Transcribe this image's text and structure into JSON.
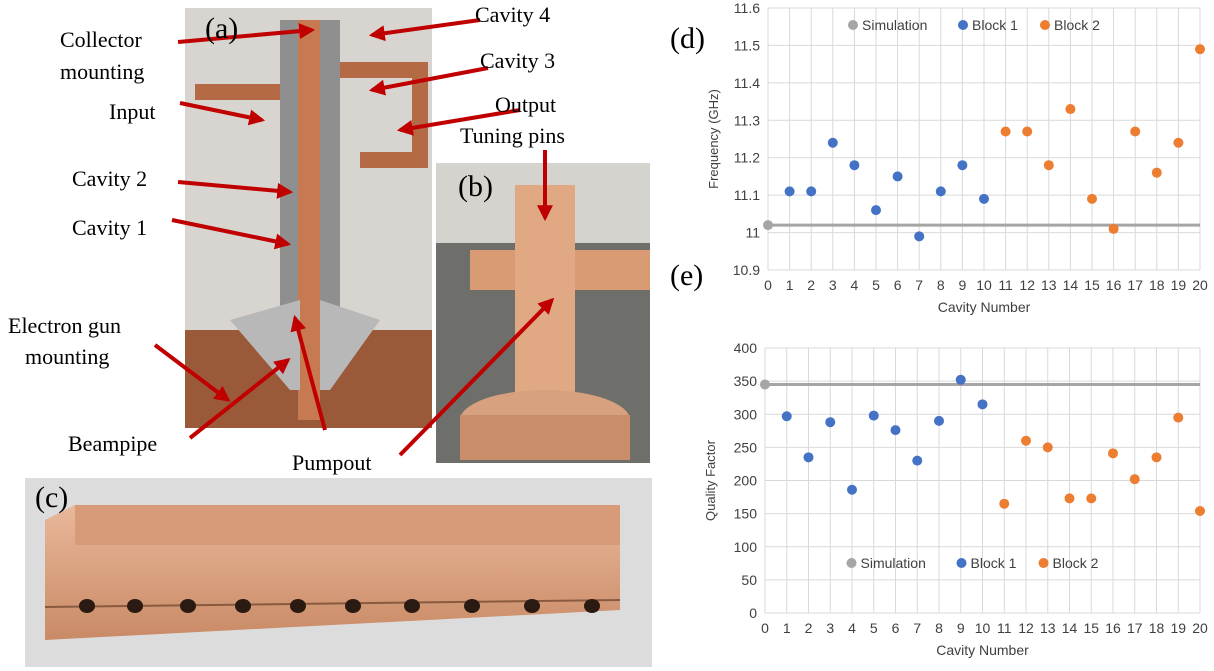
{
  "panels": {
    "a": "(a)",
    "b": "(b)",
    "c": "(c)",
    "d": "(d)",
    "e": "(e)"
  },
  "labels": {
    "collector": [
      "Collector",
      "mounting"
    ],
    "cavity4": "Cavity 4",
    "cavity3": "Cavity 3",
    "input": "Input",
    "output": "Output",
    "tuning": "Tuning pins",
    "cavity2": "Cavity 2",
    "cavity1": "Cavity 1",
    "gun": [
      "Electron gun",
      "mounting"
    ],
    "beampipe": "Beampipe",
    "pumpout": "Pumpout"
  },
  "chart_data": [
    {
      "type": "scatter",
      "xlabel": "Cavity Number",
      "ylabel": "Frequency (GHz)",
      "xlim": [
        0,
        20
      ],
      "xticks": [
        0,
        1,
        2,
        3,
        4,
        5,
        6,
        7,
        8,
        9,
        10,
        11,
        12,
        13,
        14,
        15,
        16,
        17,
        18,
        19,
        20
      ],
      "ylim": [
        10.9,
        11.6
      ],
      "yticks": [
        10.9,
        11,
        11.1,
        11.2,
        11.3,
        11.4,
        11.5,
        11.6
      ],
      "grid": true,
      "legend": "top",
      "series": [
        {
          "name": "Simulation",
          "color": "#a5a5a5",
          "line": true,
          "x": [
            0,
            20
          ],
          "values": [
            11.02,
            11.02
          ]
        },
        {
          "name": "Block 1",
          "color": "#4472c4",
          "x": [
            1,
            2,
            3,
            4,
            5,
            6,
            7,
            8,
            9,
            10
          ],
          "values": [
            11.11,
            11.11,
            11.24,
            11.18,
            11.06,
            11.15,
            10.99,
            11.11,
            11.18,
            11.09
          ]
        },
        {
          "name": "Block 2",
          "color": "#ed7d31",
          "x": [
            11,
            12,
            13,
            14,
            15,
            16,
            17,
            18,
            19,
            20
          ],
          "values": [
            11.27,
            11.27,
            11.18,
            11.33,
            11.09,
            11.01,
            11.27,
            11.16,
            11.24,
            11.49
          ]
        }
      ]
    },
    {
      "type": "scatter",
      "xlabel": "Cavity Number",
      "ylabel": "Quality Factor",
      "xlim": [
        0,
        20
      ],
      "xticks": [
        0,
        1,
        2,
        3,
        4,
        5,
        6,
        7,
        8,
        9,
        10,
        11,
        12,
        13,
        14,
        15,
        16,
        17,
        18,
        19,
        20
      ],
      "ylim": [
        0,
        400
      ],
      "yticks": [
        0,
        50,
        100,
        150,
        200,
        250,
        300,
        350,
        400
      ],
      "grid": true,
      "legend": "bottom",
      "series": [
        {
          "name": "Simulation",
          "color": "#a5a5a5",
          "line": true,
          "x": [
            0,
            20
          ],
          "values": [
            345,
            345
          ]
        },
        {
          "name": "Block 1",
          "color": "#4472c4",
          "x": [
            1,
            2,
            3,
            4,
            5,
            6,
            7,
            8,
            9,
            10
          ],
          "values": [
            297,
            235,
            288,
            186,
            298,
            276,
            230,
            290,
            352,
            315
          ]
        },
        {
          "name": "Block 2",
          "color": "#ed7d31",
          "x": [
            11,
            12,
            13,
            14,
            15,
            16,
            17,
            18,
            19,
            20
          ],
          "values": [
            165,
            260,
            250,
            173,
            173,
            241,
            202,
            235,
            295,
            154
          ]
        }
      ]
    }
  ]
}
